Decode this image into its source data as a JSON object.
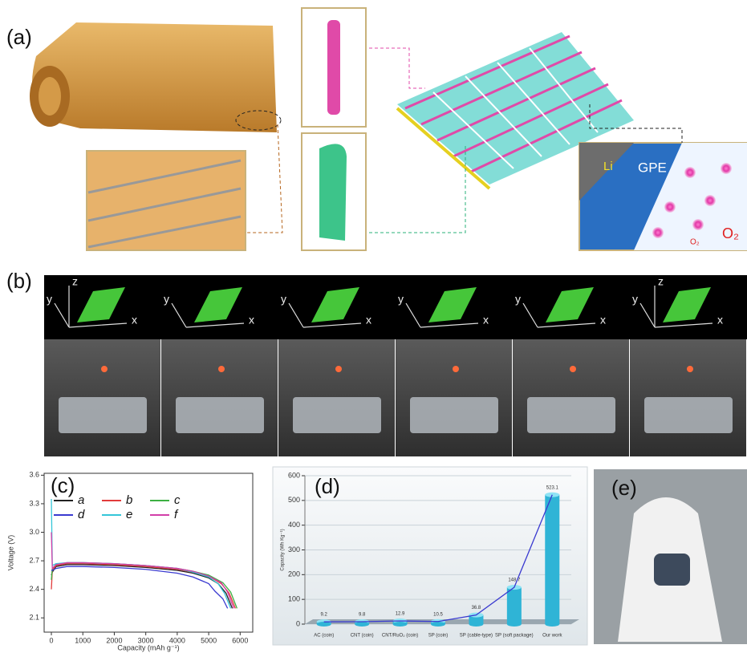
{
  "panel_a": {
    "label": "(a)",
    "inset_texts": [
      "Li",
      "GPE"
    ],
    "gas_labels": [
      "O₂",
      "O₂"
    ]
  },
  "panel_b": {
    "label": "(b)",
    "frames": [
      {
        "y": "y",
        "z": "z",
        "x": "x"
      },
      {
        "y": "y",
        "x": "x"
      },
      {
        "y": "y",
        "x": "x"
      },
      {
        "y": "y",
        "x": "x"
      },
      {
        "y": "y",
        "x": "x"
      },
      {
        "z": "z",
        "y": "y",
        "x": "x"
      }
    ]
  },
  "panel_e": {
    "label": "(e)"
  },
  "chart_data": [
    {
      "type": "line",
      "label": "(c)",
      "xlabel": "Capacity (mAh g⁻¹)",
      "ylabel": "Voltage (V)",
      "xlim": [
        -230,
        6400
      ],
      "ylim": [
        1.95,
        3.62
      ],
      "xticks": [
        0,
        1000,
        2000,
        3000,
        4000,
        5000,
        6000
      ],
      "yticks": [
        2.1,
        2.4,
        2.7,
        {
          "value": 3,
          "label": "3.0"
        },
        3.3,
        3.6
      ],
      "series": [
        {
          "name": "a",
          "color": "#222222",
          "x": [
            0,
            30,
            150,
            500,
            1000,
            2000,
            3000,
            4000,
            4500,
            5000,
            5300,
            5550,
            5750
          ],
          "values": [
            2.55,
            2.58,
            2.64,
            2.66,
            2.66,
            2.65,
            2.63,
            2.6,
            2.57,
            2.52,
            2.46,
            2.36,
            2.2
          ]
        },
        {
          "name": "b",
          "color": "#e23b3b",
          "x": [
            0,
            30,
            150,
            500,
            1000,
            2000,
            3000,
            4000,
            4500,
            5000,
            5400,
            5650,
            5850
          ],
          "values": [
            2.4,
            2.6,
            2.65,
            2.67,
            2.67,
            2.66,
            2.64,
            2.61,
            2.58,
            2.54,
            2.46,
            2.36,
            2.2
          ]
        },
        {
          "name": "c",
          "color": "#3cb043",
          "x": [
            0,
            30,
            150,
            500,
            1000,
            2000,
            3000,
            4000,
            4500,
            5000,
            5450,
            5700,
            5900
          ],
          "values": [
            2.5,
            2.62,
            2.66,
            2.68,
            2.68,
            2.67,
            2.65,
            2.62,
            2.59,
            2.55,
            2.47,
            2.37,
            2.2
          ]
        },
        {
          "name": "d",
          "color": "#3a3ad0",
          "x": [
            0,
            30,
            150,
            500,
            1000,
            2000,
            3000,
            4000,
            4500,
            5000,
            5200,
            5450,
            5600
          ],
          "values": [
            2.6,
            2.6,
            2.62,
            2.64,
            2.64,
            2.63,
            2.61,
            2.57,
            2.53,
            2.46,
            2.38,
            2.3,
            2.2
          ]
        },
        {
          "name": "e",
          "color": "#35c6d8",
          "x": [
            0,
            30,
            150,
            500,
            1000,
            2000,
            3000,
            4000,
            4500,
            5000,
            5300,
            5500,
            5700
          ],
          "values": [
            3.35,
            2.65,
            2.67,
            2.68,
            2.68,
            2.67,
            2.65,
            2.62,
            2.58,
            2.53,
            2.46,
            2.36,
            2.2
          ]
        },
        {
          "name": "f",
          "color": "#d23fa8",
          "x": [
            0,
            30,
            150,
            500,
            1000,
            2000,
            3000,
            4000,
            4500,
            5000,
            5400,
            5600,
            5800
          ],
          "values": [
            3.0,
            2.62,
            2.66,
            2.68,
            2.68,
            2.67,
            2.65,
            2.62,
            2.59,
            2.54,
            2.47,
            2.37,
            2.2
          ]
        }
      ]
    },
    {
      "type": "bar",
      "label": "(d)",
      "ylabel": "Capacity (Wh Kg⁻¹)",
      "color": "#2fb4d6",
      "categories": [
        "AC (coin)",
        "CNT (coin)",
        "CNT/RuO₂ (coin)",
        "SP (coin)",
        "SP (cable-type)",
        "SP (soft package)",
        "Our work"
      ],
      "values": [
        9.2,
        9.8,
        12.9,
        10.5,
        36.8,
        148.7,
        523.1
      ],
      "ylim": [
        0,
        600
      ],
      "yticks": [
        0,
        100,
        200,
        300,
        400,
        500,
        600
      ],
      "grid": true
    }
  ]
}
